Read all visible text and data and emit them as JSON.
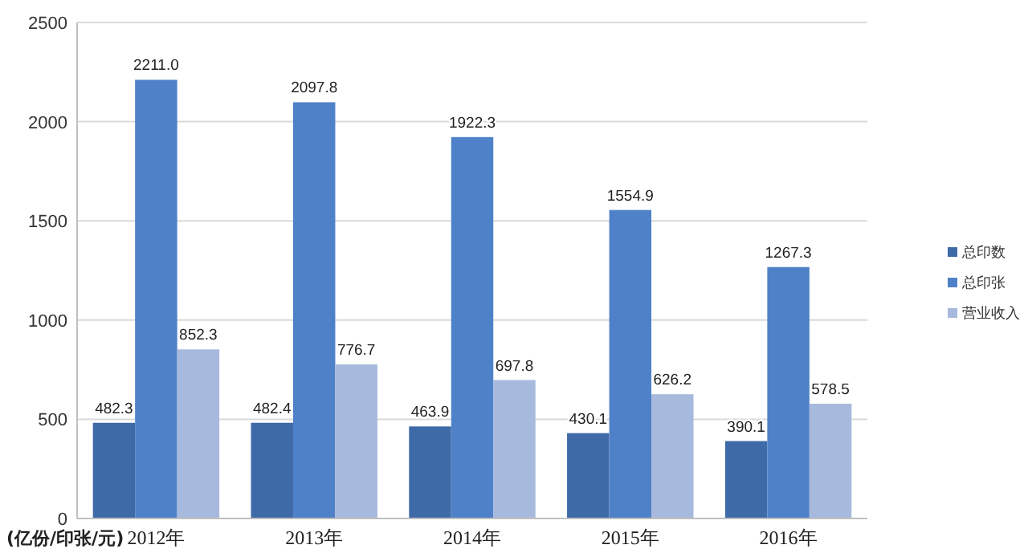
{
  "chart_data": {
    "type": "bar",
    "ylabel": "(亿份/印张/元)",
    "categories": [
      "2012年",
      "2013年",
      "2014年",
      "2015年",
      "2016年"
    ],
    "series": [
      {
        "name": "总印数",
        "color": "#3f6aa8",
        "values": [
          482.3,
          482.4,
          463.9,
          430.1,
          390.1
        ]
      },
      {
        "name": "总印张",
        "color": "#4f81c8",
        "values": [
          2211.0,
          2097.8,
          1922.3,
          1554.9,
          1267.3
        ]
      },
      {
        "name": "营业收入",
        "color": "#a7badd",
        "values": [
          852.3,
          776.7,
          697.8,
          626.2,
          578.5
        ]
      }
    ],
    "value_labels": [
      [
        "482.3",
        "482.4",
        "463.9",
        "430.1",
        "390.1"
      ],
      [
        "2211.0",
        "2097.8",
        "1922.3",
        "1554.9",
        "1267.3"
      ],
      [
        "852.3",
        "776.7",
        "697.8",
        "626.2",
        "578.5"
      ]
    ],
    "ylim": [
      0,
      2500
    ],
    "yticks": [
      0,
      500,
      1000,
      1500,
      2000,
      2500
    ],
    "grid": "y",
    "legend": "right"
  }
}
